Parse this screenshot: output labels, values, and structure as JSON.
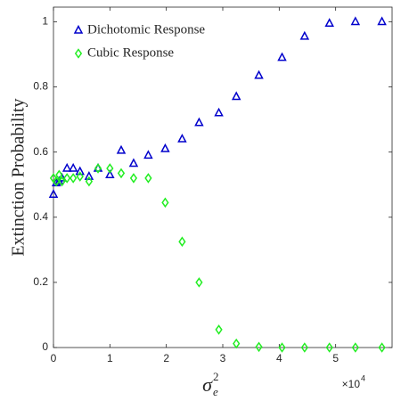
{
  "chart_data": {
    "type": "scatter",
    "ylabel": "Extinction Probability",
    "xlabel": {
      "base": "σ",
      "sub": "e",
      "sup": "2"
    },
    "x_multiplier": {
      "base": "×10",
      "sup": "4"
    },
    "x": [
      0,
      500,
      1000,
      1500,
      2400,
      3500,
      4700,
      6300,
      7900,
      10000,
      12000,
      14200,
      16800,
      19800,
      22800,
      25800,
      29300,
      32400,
      36400,
      40500,
      44500,
      48900,
      53500,
      58200
    ],
    "series": [
      {
        "name": "Dichotomic Response",
        "color": "#0000cc",
        "marker": "triangle",
        "values": [
          0.47,
          0.505,
          0.51,
          0.52,
          0.55,
          0.55,
          0.54,
          0.525,
          0.55,
          0.53,
          0.605,
          0.565,
          0.59,
          0.61,
          0.64,
          0.69,
          0.72,
          0.77,
          0.835,
          0.89,
          0.955,
          0.995,
          1.0,
          1.0
        ]
      },
      {
        "name": "Cubic Response",
        "color": "#22ee22",
        "marker": "diamond",
        "values": [
          0.52,
          0.51,
          0.53,
          0.51,
          0.52,
          0.52,
          0.525,
          0.51,
          0.55,
          0.55,
          0.535,
          0.52,
          0.52,
          0.445,
          0.325,
          0.2,
          0.055,
          0.012,
          0.002,
          0,
          0,
          0,
          0,
          0
        ]
      }
    ],
    "xlim": [
      0,
      60000
    ],
    "xticks": [
      {
        "value": 0,
        "label": "0"
      },
      {
        "value": 10000,
        "label": "1"
      },
      {
        "value": 20000,
        "label": "2"
      },
      {
        "value": 30000,
        "label": "3"
      },
      {
        "value": 40000,
        "label": "4"
      },
      {
        "value": 50000,
        "label": "5"
      }
    ],
    "ylim": [
      0,
      1.045
    ],
    "yticks": [
      0,
      0.2,
      0.4,
      0.6,
      0.8,
      1
    ],
    "legend": "upper left"
  }
}
